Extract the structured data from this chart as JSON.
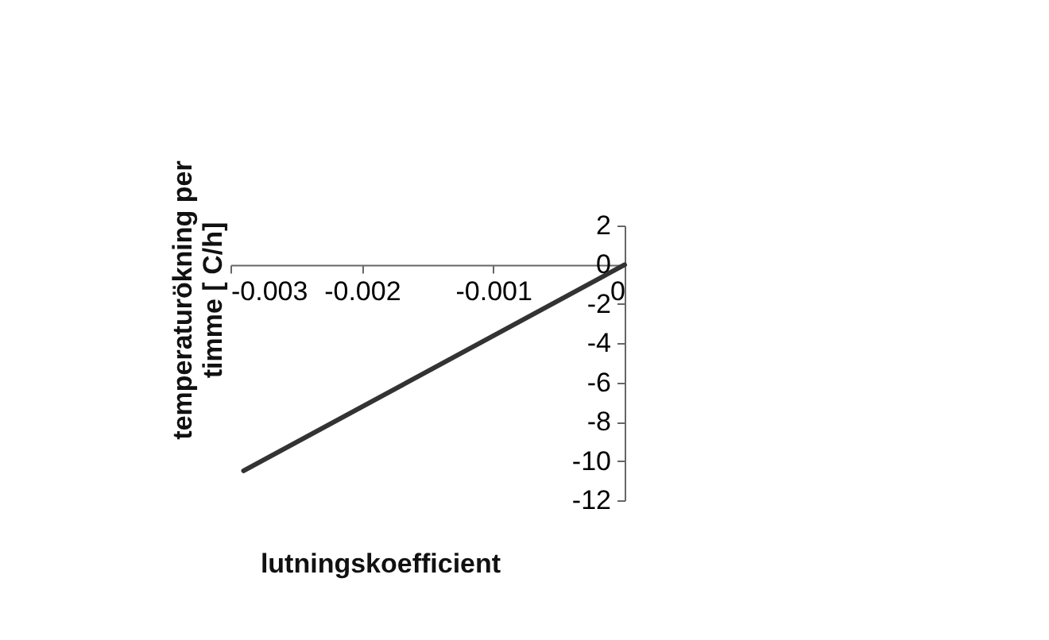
{
  "chart_data": {
    "type": "line",
    "xlabel": "lutningskoefficient",
    "ylabel": "temperaturökning per timme [ C/h]",
    "x": [
      -0.0029,
      0
    ],
    "series": [
      {
        "color": "#333333",
        "values": [
          -10.5,
          0
        ]
      }
    ],
    "xlim": [
      -0.003,
      0
    ],
    "xticks": [
      -0.003,
      -0.002,
      -0.001,
      0
    ],
    "ylim": [
      -12,
      2
    ],
    "yticks": [
      -12,
      -10,
      -8,
      -6,
      -4,
      -2,
      0,
      2
    ],
    "grid": false,
    "marker": "none",
    "line_style": "solid"
  }
}
